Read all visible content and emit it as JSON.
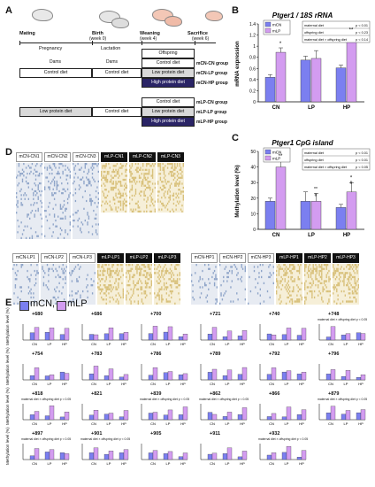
{
  "panels": {
    "a": "A",
    "b": "B",
    "c": "C",
    "d": "D",
    "e": "E"
  },
  "timeline": {
    "stages": [
      "Mating",
      "Birth",
      "Weaning",
      "Sacrifice"
    ],
    "stage_weeks": [
      "(week 0)",
      "(week 4)",
      "(week 6)"
    ],
    "periods": [
      "Pregnancy",
      "Lactation",
      "Offspring"
    ],
    "dams": [
      "Dams",
      "Dams"
    ],
    "mcn_rows": [
      {
        "dam1": "Control diet",
        "dam2": "Control diet",
        "off": "Control diet",
        "group": "mCN-CN group"
      },
      {
        "off": "Low protein diet",
        "group": "mCN-LP group"
      },
      {
        "off": "High protein diet",
        "group": "mCN-HP group"
      }
    ],
    "mlp_rows": [
      {
        "off": "Control diet",
        "group": "mLP-CN group"
      },
      {
        "dam1": "Low protein diet",
        "dam2": "Control diet",
        "off": "Low protein diet",
        "group": "mLP-LP group"
      },
      {
        "off": "High protein diet",
        "group": "mLP-HP group"
      }
    ]
  },
  "panel_b": {
    "title": "Ptger1 / 18S rRNA",
    "ylabel": "mRNA expression",
    "legend": [
      "mCN",
      "mLP"
    ],
    "stats": [
      [
        "maternal diet",
        "p < 0.01"
      ],
      [
        "offspring diet",
        "p < 0.23"
      ],
      [
        "maternal diet × offspring diet",
        "p < 0.14"
      ]
    ],
    "sig_labels": [
      "*",
      "**"
    ]
  },
  "panel_c": {
    "title": "Ptger1 CpG island",
    "ylabel": "Methylation level (%)",
    "legend": [
      "mCN",
      "mLP"
    ],
    "stats": [
      [
        "maternal diet",
        "p < 0.01"
      ],
      [
        "offspring diet",
        "p < 0.01"
      ],
      [
        "maternal diet × offspring diet",
        "p < 0.05"
      ]
    ],
    "sig_labels": [
      "**",
      "**",
      "*"
    ],
    "sig_sub": [
      "#",
      "#"
    ]
  },
  "panel_d": {
    "rows": [
      [
        "mCN-CN1",
        "mCN-CN2",
        "mCN-CN3",
        "mLP-CN1",
        "mLP-CN2",
        "mLP-CN3"
      ],
      [
        "mCN-LP1",
        "mCN-LP2",
        "mCN-LP3",
        "mLP-LP1",
        "mLP-LP2",
        "mLP-LP3"
      ],
      [
        "mCN-HP1",
        "mCN-HP2",
        "mCN-HP3",
        "mLP-HP1",
        "mLP-HP2",
        "mLP-HP3"
      ]
    ]
  },
  "panel_e": {
    "legend": [
      "mCN,",
      "mLP"
    ],
    "ylabel": "Methylation level (%)",
    "xcats": [
      "CN",
      "LP",
      "HP"
    ],
    "sites": [
      "+680",
      "+686",
      "+700",
      "+721",
      "+740",
      "+748",
      "+754",
      "+783",
      "+786",
      "+789",
      "+792",
      "+796",
      "+818",
      "+821",
      "+839",
      "+862",
      "+866",
      "+879",
      "+897",
      "+901",
      "+905",
      "+911",
      "+932"
    ],
    "notes": {
      "+748": "maternal diet × offspring diet  p < 0.05",
      "+818": "maternal diet × offspring diet  p < 0.05",
      "+839": "maternal diet × offspring diet  p < 0.05",
      "+862": "maternal diet × offspring diet  p < 0.05",
      "+879": "maternal diet × offspring diet  p < 0.05",
      "+897": "maternal diet × offspring diet  p < 0.05",
      "+901": "maternal diet × offspring diet  p < 0.05",
      "+932": "maternal diet × offspring diet  p < 0.05"
    }
  },
  "colors": {
    "mcn": "#7b7ff0",
    "mlp": "#d39cf0",
    "dark": "#2a2466",
    "lp_row": "#d9d9d9",
    "dot_cn": "#8ea4c8",
    "dot_lp": "#d8c07a"
  },
  "chart_data": [
    {
      "type": "bar",
      "title": "Ptger1 / 18S rRNA",
      "ylabel": "mRNA expression",
      "categories": [
        "CN",
        "LP",
        "HP"
      ],
      "ylim": [
        0,
        1.4
      ],
      "series": [
        {
          "name": "mCN",
          "values": [
            0.44,
            0.75,
            0.61
          ],
          "err": [
            0.05,
            0.07,
            0.05
          ]
        },
        {
          "name": "mLP",
          "values": [
            0.89,
            0.78,
            1.13
          ],
          "err": [
            0.08,
            0.14,
            0.1
          ]
        }
      ]
    },
    {
      "type": "bar",
      "title": "Ptger1 CpG island",
      "ylabel": "Methylation level (%)",
      "categories": [
        "CN",
        "LP",
        "HP"
      ],
      "ylim": [
        0,
        50
      ],
      "series": [
        {
          "name": "mCN",
          "values": [
            18,
            18,
            14
          ],
          "err": [
            2,
            6,
            2
          ]
        },
        {
          "name": "mLP",
          "values": [
            40,
            18,
            24
          ],
          "err": [
            4,
            5,
            6
          ]
        }
      ]
    }
  ]
}
